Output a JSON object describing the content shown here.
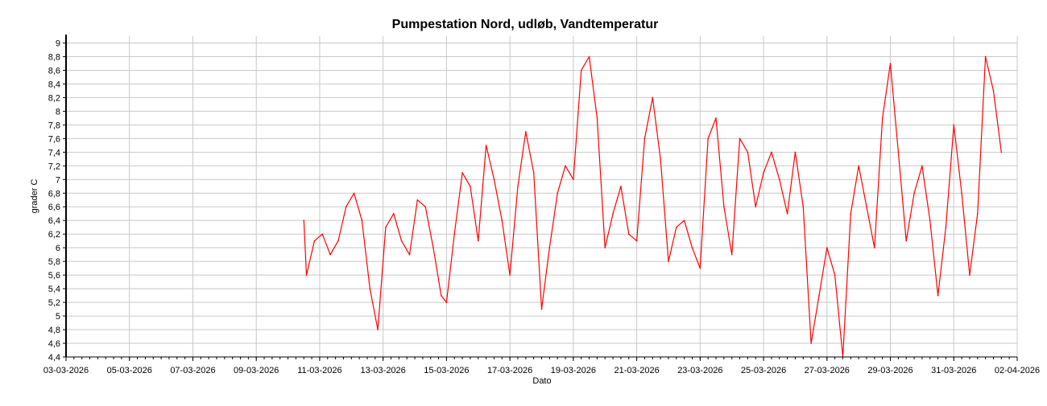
{
  "chart_data": {
    "type": "line",
    "title": "Pumpestation Nord, udløb, Vandtemperatur",
    "xlabel": "Dato",
    "ylabel": "grader C",
    "xlim": [
      "2026-03-03",
      "2026-04-02"
    ],
    "ylim": [
      4.4,
      9.1
    ],
    "grid": true,
    "legend": "none",
    "x_ticks": [
      "03-03-2026",
      "05-03-2026",
      "07-03-2026",
      "09-03-2026",
      "11-03-2026",
      "13-03-2026",
      "15-03-2026",
      "17-03-2026",
      "19-03-2026",
      "21-03-2026",
      "23-03-2026",
      "25-03-2026",
      "27-03-2026",
      "29-03-2026",
      "31-03-2026",
      "02-04-2026"
    ],
    "y_ticks": [
      "4,4",
      "4,6",
      "4,8",
      "5",
      "5,2",
      "5,4",
      "5,6",
      "5,8",
      "6",
      "6,2",
      "6,4",
      "6,6",
      "6,8",
      "7",
      "7,2",
      "7,4",
      "7,6",
      "7,8",
      "8",
      "8,2",
      "8,4",
      "8,6",
      "8,8",
      "9"
    ],
    "colors": {
      "series": "#ff0000",
      "grid": "#c8c8c8",
      "axis": "#000000"
    },
    "series": [
      {
        "x": [
          "2026-03-10 12:00",
          "2026-03-10 14:00",
          "2026-03-10 20:00",
          "2026-03-11 02:00",
          "2026-03-11 08:00",
          "2026-03-11 14:00",
          "2026-03-11 20:00",
          "2026-03-12 02:00",
          "2026-03-12 08:00",
          "2026-03-12 14:00",
          "2026-03-12 20:00",
          "2026-03-13 02:00",
          "2026-03-13 08:00",
          "2026-03-13 14:00",
          "2026-03-13 20:00",
          "2026-03-14 02:00",
          "2026-03-14 08:00",
          "2026-03-14 14:00",
          "2026-03-14 20:00",
          "2026-03-15 00:00",
          "2026-03-15 06:00",
          "2026-03-15 12:00",
          "2026-03-15 18:00",
          "2026-03-16 00:00",
          "2026-03-16 06:00",
          "2026-03-16 12:00",
          "2026-03-16 18:00",
          "2026-03-17 00:00",
          "2026-03-17 06:00",
          "2026-03-17 12:00",
          "2026-03-17 18:00",
          "2026-03-18 00:00",
          "2026-03-18 06:00",
          "2026-03-18 12:00",
          "2026-03-18 18:00",
          "2026-03-19 00:00",
          "2026-03-19 06:00",
          "2026-03-19 12:00",
          "2026-03-19 18:00",
          "2026-03-20 00:00",
          "2026-03-20 06:00",
          "2026-03-20 12:00",
          "2026-03-20 18:00",
          "2026-03-21 00:00",
          "2026-03-21 06:00",
          "2026-03-21 12:00",
          "2026-03-21 18:00",
          "2026-03-22 00:00",
          "2026-03-22 06:00",
          "2026-03-22 12:00",
          "2026-03-22 18:00",
          "2026-03-23 00:00",
          "2026-03-23 06:00",
          "2026-03-23 12:00",
          "2026-03-23 18:00",
          "2026-03-24 00:00",
          "2026-03-24 06:00",
          "2026-03-24 12:00",
          "2026-03-24 18:00",
          "2026-03-25 00:00",
          "2026-03-25 06:00",
          "2026-03-25 12:00",
          "2026-03-25 18:00",
          "2026-03-26 00:00",
          "2026-03-26 06:00",
          "2026-03-26 12:00",
          "2026-03-26 18:00",
          "2026-03-27 00:00",
          "2026-03-27 06:00",
          "2026-03-27 12:00",
          "2026-03-27 18:00",
          "2026-03-28 00:00",
          "2026-03-28 06:00",
          "2026-03-28 12:00",
          "2026-03-28 18:00",
          "2026-03-29 00:00",
          "2026-03-29 06:00",
          "2026-03-29 12:00",
          "2026-03-29 18:00",
          "2026-03-30 00:00",
          "2026-03-30 06:00",
          "2026-03-30 12:00",
          "2026-03-30 18:00",
          "2026-03-31 00:00",
          "2026-03-31 06:00",
          "2026-03-31 12:00",
          "2026-03-31 18:00",
          "2026-04-01 00:00",
          "2026-04-01 06:00",
          "2026-04-01 12:00"
        ],
        "y": [
          6.4,
          5.6,
          6.1,
          6.2,
          5.9,
          6.1,
          6.6,
          6.8,
          6.4,
          5.4,
          4.8,
          6.3,
          6.5,
          6.1,
          5.9,
          6.7,
          6.6,
          6.0,
          5.3,
          5.2,
          6.2,
          7.1,
          6.9,
          6.1,
          7.5,
          7.0,
          6.4,
          5.6,
          6.9,
          7.7,
          7.1,
          5.1,
          6.0,
          6.8,
          7.2,
          7.0,
          8.6,
          8.8,
          7.9,
          6.0,
          6.5,
          6.9,
          6.2,
          6.1,
          7.6,
          8.2,
          7.3,
          5.8,
          6.3,
          6.4,
          6.0,
          5.7,
          7.6,
          7.9,
          6.6,
          5.9,
          7.6,
          7.4,
          6.6,
          7.1,
          7.4,
          7.0,
          6.5,
          7.4,
          6.6,
          4.6,
          5.3,
          6.0,
          5.6,
          4.4,
          6.5,
          7.2,
          6.6,
          6.0,
          7.9,
          8.7,
          7.4,
          6.1,
          6.8,
          7.2,
          6.4,
          5.3,
          6.3,
          7.8,
          6.8,
          5.6,
          6.5,
          8.8,
          8.3,
          7.4
        ]
      }
    ]
  }
}
